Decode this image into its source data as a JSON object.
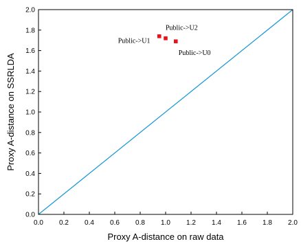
{
  "chart_data": {
    "type": "scatter",
    "title": "",
    "xlabel": "Proxy A-distance on raw data",
    "ylabel": "Proxy A-distance on SSRLDA",
    "xlim": [
      0.0,
      2.0
    ],
    "ylim": [
      0.0,
      2.0
    ],
    "grid": false,
    "x_ticks": [
      "0.0",
      "0.2",
      "0.4",
      "0.6",
      "0.8",
      "1.0",
      "1.2",
      "1.4",
      "1.6",
      "1.8",
      "2.0"
    ],
    "y_ticks": [
      "0.0",
      "0.2",
      "0.4",
      "0.6",
      "0.8",
      "1.0",
      "1.2",
      "1.4",
      "1.6",
      "1.8",
      "2.0"
    ],
    "reference_line": {
      "x": [
        0.0,
        2.0
      ],
      "y": [
        0.0,
        2.0
      ],
      "color": "#1f9ad6"
    },
    "points": [
      {
        "label": "Public->U1",
        "x": 0.95,
        "y": 1.74
      },
      {
        "label": "Public->U2",
        "x": 1.0,
        "y": 1.72
      },
      {
        "label": "Public->U0",
        "x": 1.08,
        "y": 1.69
      }
    ],
    "point_color": "#e8141b"
  }
}
